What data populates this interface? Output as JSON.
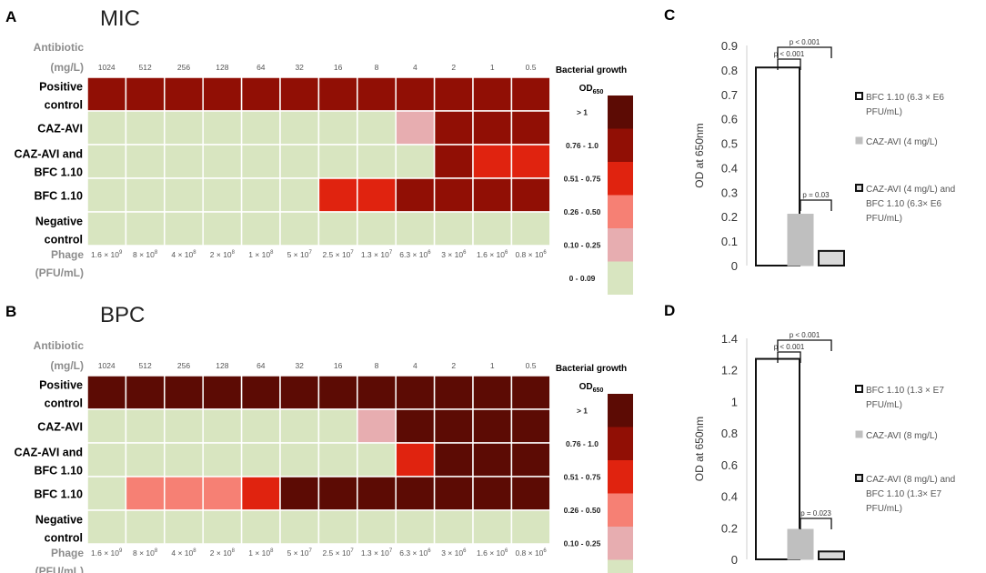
{
  "panels": {
    "A": {
      "letter": "A",
      "title": "MIC"
    },
    "B": {
      "letter": "B",
      "title": "BPC"
    },
    "C": {
      "letter": "C"
    },
    "D": {
      "letter": "D"
    }
  },
  "heatmap_common": {
    "antibiotic_label": [
      "Antibiotic",
      "(mg/L)"
    ],
    "antibiotic_doses": [
      "1024",
      "512",
      "256",
      "128",
      "64",
      "32",
      "16",
      "8",
      "4",
      "2",
      "1",
      "0.5"
    ],
    "phage_label": [
      "Phage",
      "(PFU/mL)"
    ],
    "phage_doses": [
      {
        "m": "1.6",
        "e": "9"
      },
      {
        "m": "8",
        "e": "8"
      },
      {
        "m": "4",
        "e": "8"
      },
      {
        "m": "2",
        "e": "8"
      },
      {
        "m": "1",
        "e": "8"
      },
      {
        "m": "5",
        "e": "7"
      },
      {
        "m": "2.5",
        "e": "7"
      },
      {
        "m": "1.3",
        "e": "7"
      },
      {
        "m": "6.3",
        "e": "6"
      },
      {
        "m": "3",
        "e": "6"
      },
      {
        "m": "1.6",
        "e": "6"
      },
      {
        "m": "0.8",
        "e": "6"
      }
    ],
    "row_labels": [
      [
        "Positive",
        "control"
      ],
      [
        "CAZ-AVI"
      ],
      [
        "CAZ-AVI and",
        "BFC 1.10"
      ],
      [
        "BFC 1.10"
      ],
      [
        "Negative",
        "control"
      ]
    ]
  },
  "legend": {
    "title": "Bacterial growth",
    "od_label": "OD",
    "od_sub": "650",
    "categories": [
      "> 1",
      "0.76 - 1.0",
      "0.51 - 0.75",
      "0.26 - 0.50",
      "0.10 - 0.25",
      "0 - 0.09"
    ],
    "colors": [
      "#5c0b04",
      "#910f05",
      "#e0230f",
      "#f68074",
      "#e7adb0",
      "#d8e5c0"
    ]
  },
  "chart_data": [
    {
      "type": "heatmap",
      "title": "MIC",
      "columns": [
        "1024",
        "512",
        "256",
        "128",
        "64",
        "32",
        "16",
        "8",
        "4",
        "2",
        "1",
        "0.5"
      ],
      "rows": [
        "Positive control",
        "CAZ-AVI",
        "CAZ-AVI and BFC 1.10",
        "BFC 1.10",
        "Negative control"
      ],
      "values": [
        [
          1,
          1,
          1,
          1,
          1,
          1,
          1,
          1,
          1,
          1,
          1,
          1
        ],
        [
          5,
          5,
          5,
          5,
          5,
          5,
          5,
          5,
          4,
          1,
          1,
          1
        ],
        [
          5,
          5,
          5,
          5,
          5,
          5,
          5,
          5,
          5,
          1,
          2,
          2
        ],
        [
          5,
          5,
          5,
          5,
          5,
          5,
          2,
          2,
          1,
          1,
          1,
          1
        ],
        [
          5,
          5,
          5,
          5,
          5,
          5,
          5,
          5,
          5,
          5,
          5,
          5
        ]
      ],
      "value_legend": "index into legend.categories"
    },
    {
      "type": "heatmap",
      "title": "BPC",
      "columns": [
        "1024",
        "512",
        "256",
        "128",
        "64",
        "32",
        "16",
        "8",
        "4",
        "2",
        "1",
        "0.5"
      ],
      "rows": [
        "Positive control",
        "CAZ-AVI",
        "CAZ-AVI and BFC 1.10",
        "BFC 1.10",
        "Negative control"
      ],
      "values": [
        [
          0,
          0,
          0,
          0,
          0,
          0,
          0,
          0,
          0,
          0,
          0,
          0
        ],
        [
          5,
          5,
          5,
          5,
          5,
          5,
          5,
          4,
          0,
          0,
          0,
          0
        ],
        [
          5,
          5,
          5,
          5,
          5,
          5,
          5,
          5,
          2,
          0,
          0,
          0
        ],
        [
          5,
          3,
          3,
          3,
          2,
          0,
          0,
          0,
          0,
          0,
          0,
          0
        ],
        [
          5,
          5,
          5,
          5,
          5,
          5,
          5,
          5,
          5,
          5,
          5,
          5
        ]
      ],
      "value_legend": "index into legend.categories"
    },
    {
      "type": "bar",
      "panel": "C",
      "ylabel": "OD at 650nm",
      "ylim": [
        0,
        0.9
      ],
      "yticks": [
        "0",
        "0.1",
        "0.2",
        "0.3",
        "0.4",
        "0.5",
        "0.6",
        "0.7",
        "0.8",
        "0.9"
      ],
      "categories": [
        "BFC 1.10 (6.3 × E6 PFU/mL)",
        "CAZ-AVI (4 mg/L)",
        "CAZ-AVI (4 mg/L) and BFC 1.10 (6.3× E6 PFU/mL)"
      ],
      "values": [
        0.81,
        0.21,
        0.06
      ],
      "legend": [
        [
          "BFC  1.10 (6.3 × E6",
          "PFU/mL)"
        ],
        [
          "CAZ-AVI (4 mg/L)"
        ],
        [
          "CAZ-AVI (4 mg/L) and",
          "BFC 1.10 (6.3× E6",
          "PFU/mL)"
        ]
      ],
      "significance": [
        {
          "pair": [
            0,
            1
          ],
          "label": "p < 0.001"
        },
        {
          "pair": [
            0,
            2
          ],
          "label": "p < 0.001"
        },
        {
          "pair": [
            1,
            2
          ],
          "label": "p = 0.03"
        }
      ]
    },
    {
      "type": "bar",
      "panel": "D",
      "ylabel": "OD at 650nm",
      "ylim": [
        0,
        1.4
      ],
      "yticks": [
        "0",
        "0.2",
        "0.4",
        "0.6",
        "0.8",
        "1",
        "1.2",
        "1.4"
      ],
      "categories": [
        "BFC 1.10 (1.3 × E7 PFU/mL)",
        "CAZ-AVI (8 mg/L)",
        "CAZ-AVI (8 mg/L) and BFC 1.10 (1.3× E7 PFU/mL)"
      ],
      "values": [
        1.27,
        0.19,
        0.05
      ],
      "legend": [
        [
          "BFC  1.10 (1.3 × E7",
          "PFU/mL)"
        ],
        [
          "CAZ-AVI (8 mg/L)"
        ],
        [
          "CAZ-AVI (8 mg/L) and",
          "BFC 1.10 (1.3× E7",
          "PFU/mL)"
        ]
      ],
      "significance": [
        {
          "pair": [
            0,
            1
          ],
          "label": "p < 0.001"
        },
        {
          "pair": [
            0,
            2
          ],
          "label": "p < 0.001"
        },
        {
          "pair": [
            1,
            2
          ],
          "label": "p = 0.023"
        }
      ]
    }
  ]
}
